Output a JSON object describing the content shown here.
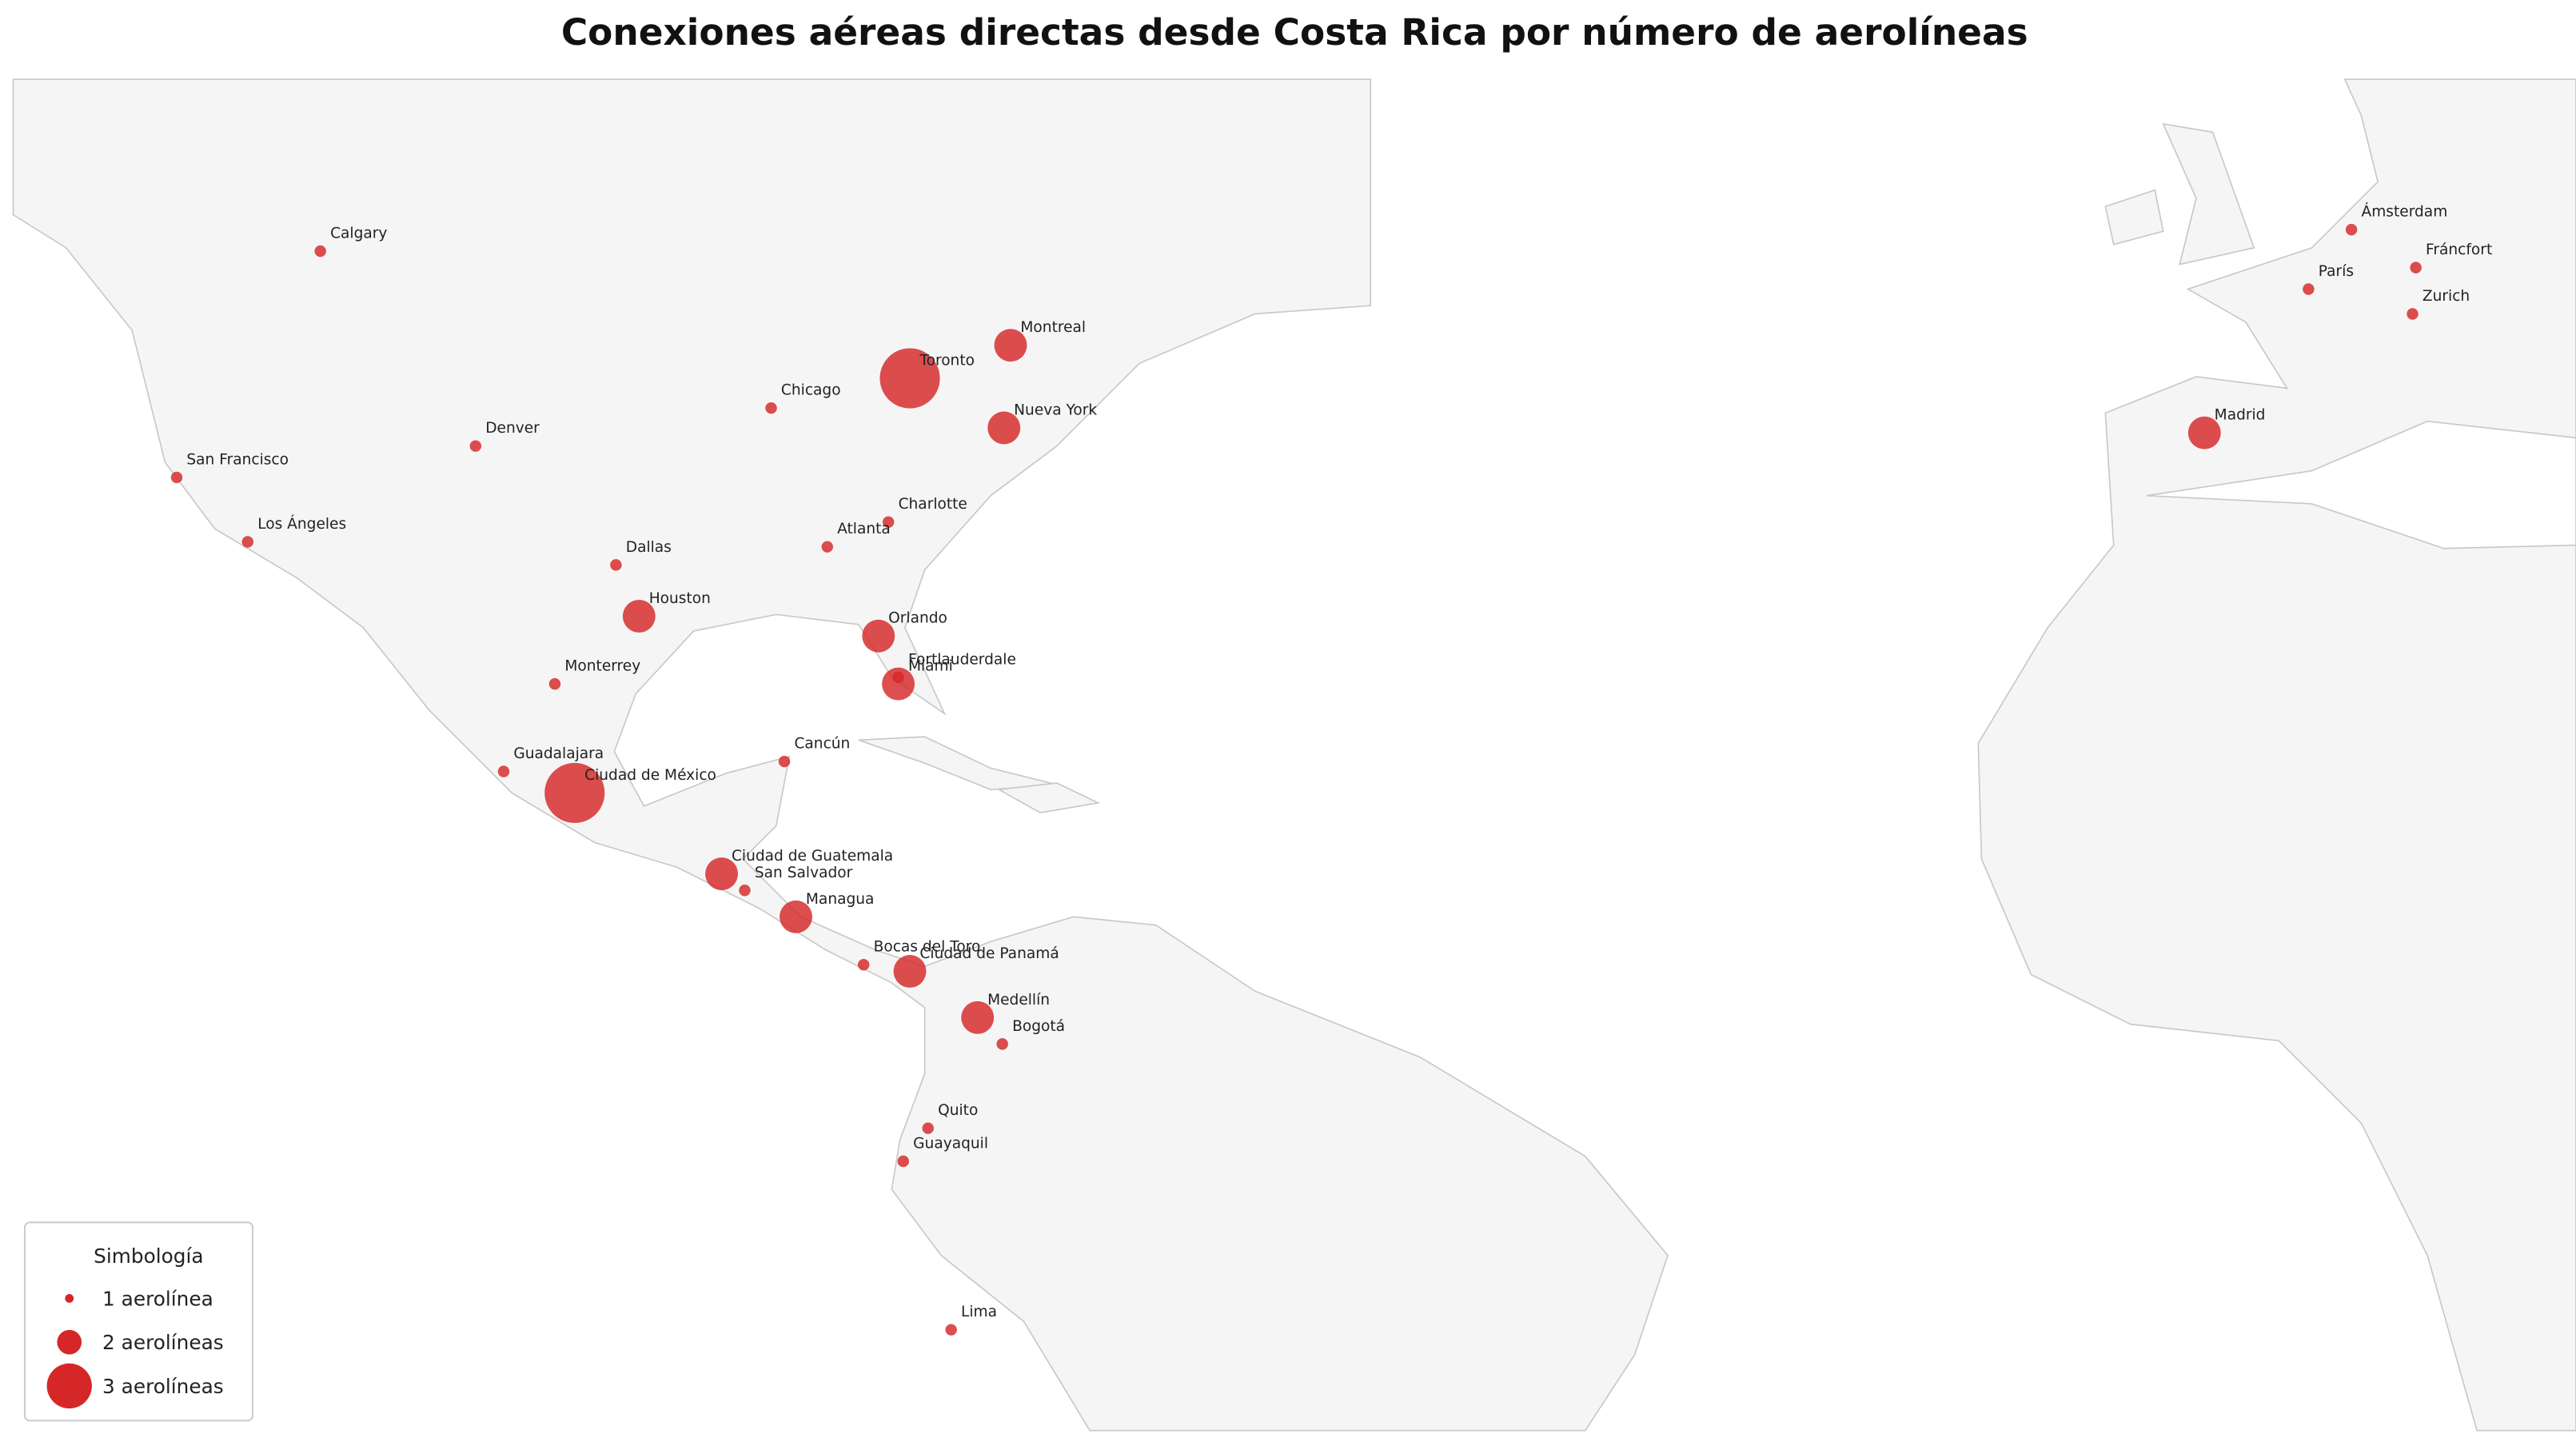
{
  "title": "Conexiones aéreas directas desde Costa Rica por número de aerolíneas",
  "color": "#d62728",
  "cities": [
    {
      "name": "Calgary",
      "airlines": 1
    },
    {
      "name": "Montreal",
      "airlines": 2
    },
    {
      "name": "Toronto",
      "airlines": 3
    },
    {
      "name": "Chicago",
      "airlines": 1
    },
    {
      "name": "Nueva York",
      "airlines": 2
    },
    {
      "name": "Denver",
      "airlines": 1
    },
    {
      "name": "San Francisco",
      "airlines": 1
    },
    {
      "name": "Los Ángeles",
      "airlines": 1
    },
    {
      "name": "Charlotte",
      "airlines": 1
    },
    {
      "name": "Atlanta",
      "airlines": 1
    },
    {
      "name": "Dallas",
      "airlines": 1
    },
    {
      "name": "Houston",
      "airlines": 2
    },
    {
      "name": "Orlando",
      "airlines": 2
    },
    {
      "name": "Fortlauderdale",
      "airlines": 1
    },
    {
      "name": "Miami",
      "airlines": 2
    },
    {
      "name": "Monterrey",
      "airlines": 1
    },
    {
      "name": "Cancún",
      "airlines": 1
    },
    {
      "name": "Guadalajara",
      "airlines": 1
    },
    {
      "name": "Ciudad de México",
      "airlines": 3
    },
    {
      "name": "Ciudad de Guatemala",
      "airlines": 2
    },
    {
      "name": "San Salvador",
      "airlines": 1
    },
    {
      "name": "Managua",
      "airlines": 2
    },
    {
      "name": "Bocas del Toro",
      "airlines": 1
    },
    {
      "name": "Ciudad de Panamá",
      "airlines": 2
    },
    {
      "name": "Medellín",
      "airlines": 2
    },
    {
      "name": "Bogotá",
      "airlines": 1
    },
    {
      "name": "Quito",
      "airlines": 1
    },
    {
      "name": "Guayaquil",
      "airlines": 1
    },
    {
      "name": "Lima",
      "airlines": 1
    },
    {
      "name": "Ámsterdam",
      "airlines": 1
    },
    {
      "name": "Fráncfort",
      "airlines": 1
    },
    {
      "name": "París",
      "airlines": 1
    },
    {
      "name": "Zurich",
      "airlines": 1
    },
    {
      "name": "Madrid",
      "airlines": 2
    }
  ],
  "legend": {
    "title": "Simbología",
    "items": [
      {
        "value": 1,
        "label": "1 aerolínea"
      },
      {
        "value": 2,
        "label": "2 aerolíneas"
      },
      {
        "value": 3,
        "label": "3 aerolíneas"
      }
    ]
  }
}
